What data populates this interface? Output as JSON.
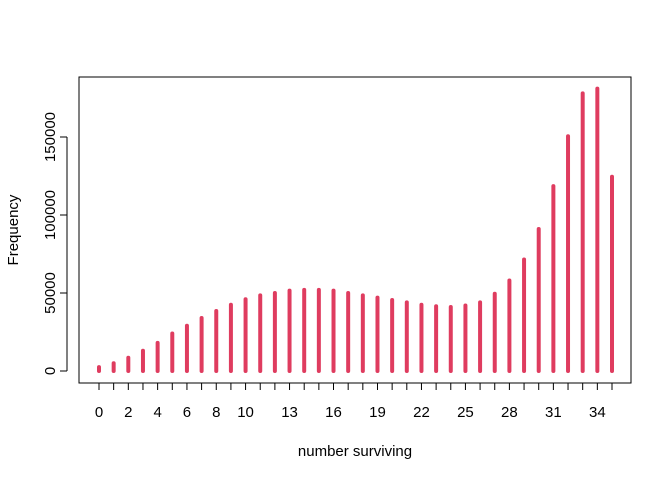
{
  "chart_data": {
    "type": "bar",
    "style": "vertical line segments (histogram-like, type h)",
    "xlabel": "number surviving",
    "ylabel": "Frequency",
    "x": [
      0,
      1,
      2,
      3,
      4,
      5,
      6,
      7,
      8,
      9,
      10,
      11,
      12,
      13,
      14,
      15,
      16,
      17,
      18,
      19,
      20,
      21,
      22,
      23,
      24,
      25,
      26,
      27,
      28,
      29,
      30,
      31,
      32,
      33,
      34,
      35
    ],
    "values": [
      2500,
      5000,
      8500,
      13000,
      18000,
      24000,
      29000,
      34000,
      38500,
      42500,
      46000,
      48500,
      50000,
      51500,
      52000,
      52000,
      51500,
      50000,
      48500,
      47000,
      45500,
      44000,
      42500,
      41500,
      41000,
      42000,
      44000,
      49500,
      58000,
      71500,
      91000,
      118500,
      150500,
      178000,
      181000,
      124500
    ],
    "xlim": [
      0,
      35
    ],
    "ylim": [
      0,
      185000
    ],
    "x_ticks": [
      0,
      2,
      4,
      6,
      8,
      10,
      13,
      16,
      19,
      22,
      25,
      28,
      31,
      34
    ],
    "y_ticks": [
      0,
      50000,
      100000,
      150000
    ],
    "bar_color": "#DF3C5F",
    "grid": false,
    "legend": "none"
  }
}
